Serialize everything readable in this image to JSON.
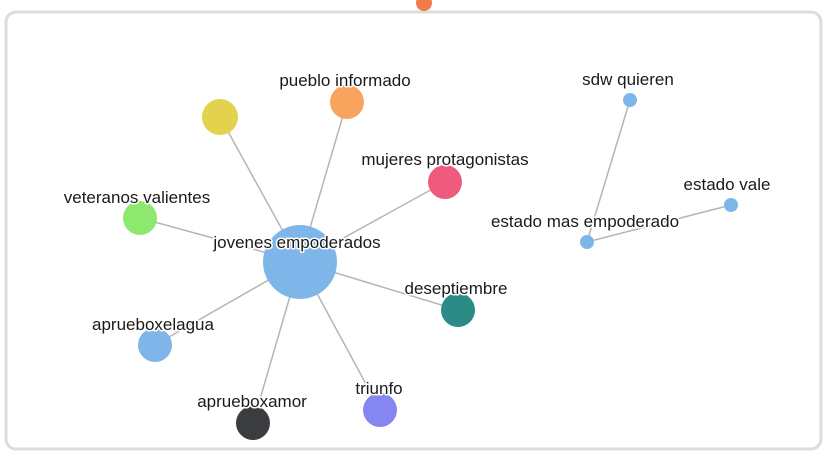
{
  "nodes": [
    {
      "label": "jovenes empoderados",
      "color": "#7fb6ea"
    },
    {
      "label": "pueblo informado",
      "color": "#f8a45e"
    },
    {
      "color": "#e3d24d"
    },
    {
      "label": "mujeres protagonistas",
      "color": "#ef5b7d"
    },
    {
      "label": "veteranos valientes",
      "color": "#8ee86f"
    },
    {
      "label": "deseptiembre",
      "color": "#2b8c85"
    },
    {
      "label": "aprueboxelagua",
      "color": "#80b5ea"
    },
    {
      "label": "aprueboxamor",
      "color": "#3b3c40"
    },
    {
      "label": "triunfo",
      "color": "#8586ef"
    },
    {
      "label": "sdw quieren",
      "color": "#7fb6ea"
    },
    {
      "label": "estado mas empoderado",
      "color": "#7fb6ea"
    },
    {
      "label": "estado vale",
      "color": "#7fb6ea"
    }
  ]
}
